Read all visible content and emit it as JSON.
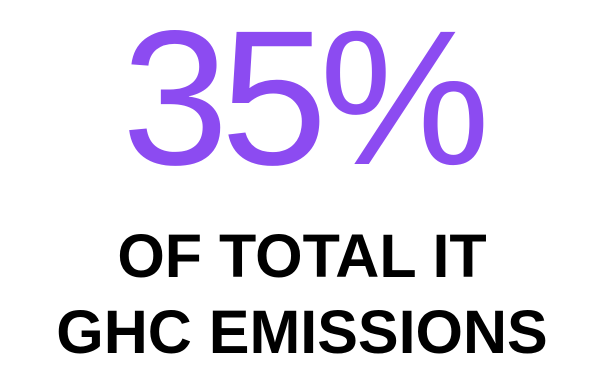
{
  "stat": {
    "value": "35%",
    "caption_line_1": "OF TOTAL IT",
    "caption_line_2": "GHC EMISSIONS",
    "accent_color": "#8c4bf1",
    "caption_color": "#000000"
  }
}
